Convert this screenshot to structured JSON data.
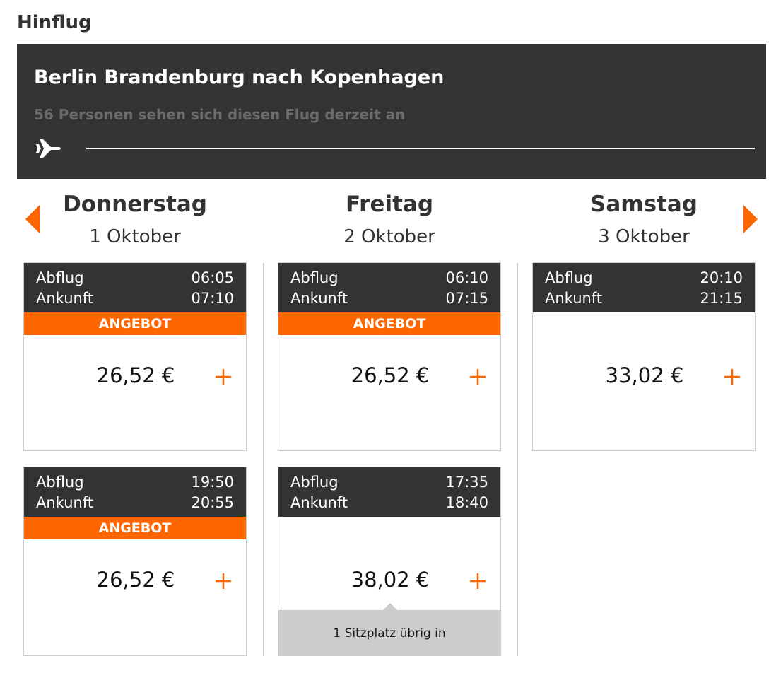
{
  "section_title": "Hinflug",
  "banner": {
    "route": "Berlin Brandenburg nach Kopenhagen",
    "viewers": "56 Personen sehen sich diesen Flug derzeit an"
  },
  "days": [
    {
      "weekday": "Donnerstag",
      "date": "1 Oktober",
      "flights": [
        {
          "depart_label": "Abflug",
          "depart_time": "06:05",
          "arrive_label": "Ankunft",
          "arrive_time": "07:10",
          "badge": "ANGEBOT",
          "price": "26,52 €"
        },
        {
          "depart_label": "Abflug",
          "depart_time": "19:50",
          "arrive_label": "Ankunft",
          "arrive_time": "20:55",
          "badge": "ANGEBOT",
          "price": "26,52 €"
        }
      ]
    },
    {
      "weekday": "Freitag",
      "date": "2 Oktober",
      "flights": [
        {
          "depart_label": "Abflug",
          "depart_time": "06:10",
          "arrive_label": "Ankunft",
          "arrive_time": "07:15",
          "badge": "ANGEBOT",
          "price": "26,52 €"
        },
        {
          "depart_label": "Abflug",
          "depart_time": "17:35",
          "arrive_label": "Ankunft",
          "arrive_time": "18:40",
          "price": "38,02 €",
          "note": "1 Sitzplatz übrig in"
        }
      ]
    },
    {
      "weekday": "Samstag",
      "date": "3 Oktober",
      "flights": [
        {
          "depart_label": "Abflug",
          "depart_time": "20:10",
          "arrive_label": "Ankunft",
          "arrive_time": "21:15",
          "price": "33,02 €"
        }
      ]
    }
  ]
}
